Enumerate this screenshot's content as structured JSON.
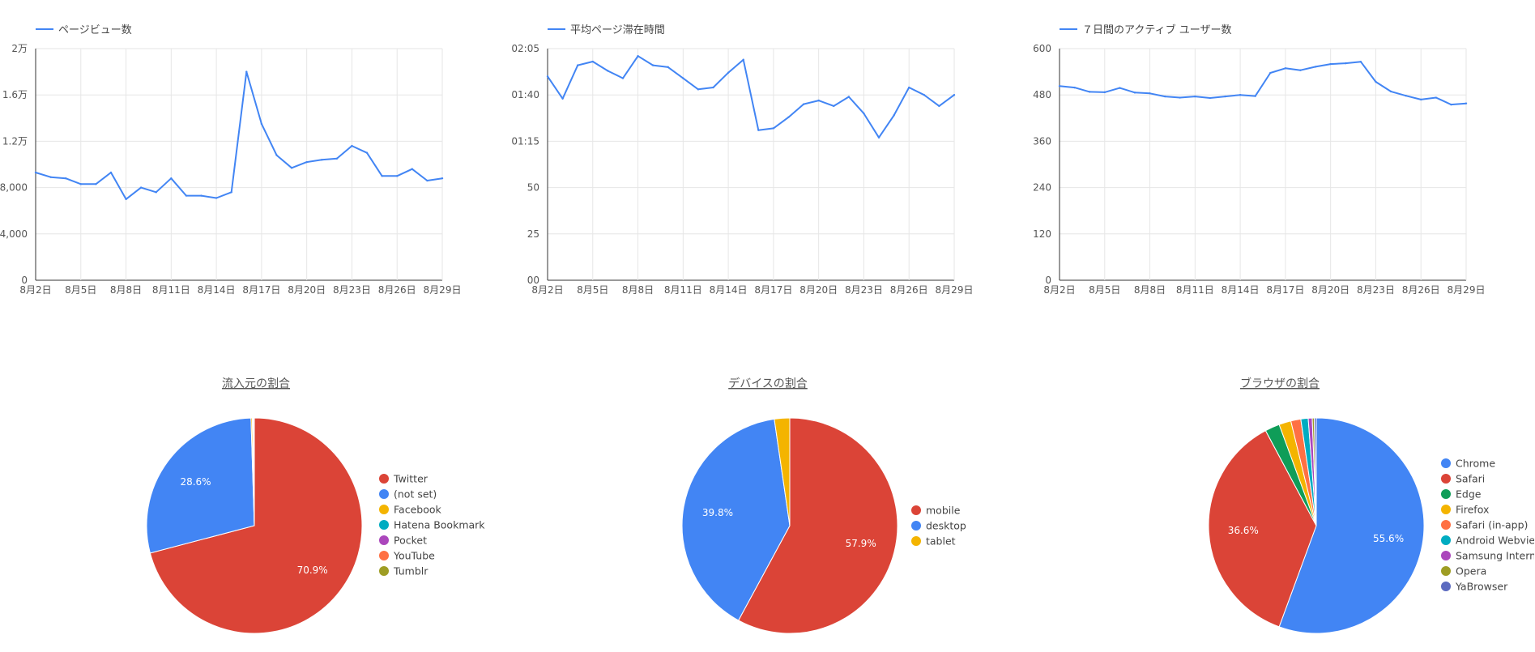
{
  "chart_data": [
    {
      "id": "pageviews",
      "type": "line",
      "title": "",
      "legend": "ページビュー数",
      "color": "#4285f4",
      "ylim": [
        0,
        20000
      ],
      "yticks": [
        "0",
        "4,000",
        "8,000",
        "1.2万",
        "1.6万",
        "2万"
      ],
      "xticks": [
        "8月2日",
        "8月5日",
        "8月8日",
        "8月11日",
        "8月14日",
        "8月17日",
        "8月20日",
        "8月23日",
        "8月26日",
        "8月29日"
      ],
      "x": [
        "8/2",
        "8/3",
        "8/4",
        "8/5",
        "8/6",
        "8/7",
        "8/8",
        "8/9",
        "8/10",
        "8/11",
        "8/12",
        "8/13",
        "8/14",
        "8/15",
        "8/16",
        "8/17",
        "8/18",
        "8/19",
        "8/20",
        "8/21",
        "8/22",
        "8/23",
        "8/24",
        "8/25",
        "8/26",
        "8/27",
        "8/28",
        "8/29"
      ],
      "values": [
        9300,
        8900,
        8800,
        8300,
        8300,
        9300,
        7000,
        8000,
        7600,
        8800,
        7300,
        7300,
        7100,
        7600,
        18000,
        13500,
        10800,
        9700,
        10200,
        10400,
        10500,
        11600,
        11000,
        9000,
        9000,
        9600,
        8600,
        8800
      ]
    },
    {
      "id": "avgtime",
      "type": "line",
      "title": "",
      "legend": "平均ページ滞在時間",
      "color": "#4285f4",
      "unit": "seconds",
      "ylim": [
        0,
        125
      ],
      "yticks": [
        "00",
        "25",
        "50",
        "01:15",
        "01:40",
        "02:05"
      ],
      "xticks": [
        "8月2日",
        "8月5日",
        "8月8日",
        "8月11日",
        "8月14日",
        "8月17日",
        "8月20日",
        "8月23日",
        "8月26日",
        "8月29日"
      ],
      "x": [
        "8/2",
        "8/3",
        "8/4",
        "8/5",
        "8/6",
        "8/7",
        "8/8",
        "8/9",
        "8/10",
        "8/11",
        "8/12",
        "8/13",
        "8/14",
        "8/15",
        "8/16",
        "8/17",
        "8/18",
        "8/19",
        "8/20",
        "8/21",
        "8/22",
        "8/23",
        "8/24",
        "8/25",
        "8/26",
        "8/27",
        "8/28",
        "8/29"
      ],
      "values": [
        110,
        98,
        116,
        118,
        113,
        109,
        121,
        116,
        115,
        109,
        103,
        104,
        112,
        119,
        81,
        82,
        88,
        95,
        97,
        94,
        99,
        90,
        77,
        89,
        104,
        100,
        94,
        100
      ]
    },
    {
      "id": "active7",
      "type": "line",
      "title": "",
      "legend": "７日間のアクティブ ユーザー数",
      "color": "#4285f4",
      "ylim": [
        0,
        600
      ],
      "yticks": [
        "0",
        "120",
        "240",
        "360",
        "480",
        "600"
      ],
      "xticks": [
        "8月2日",
        "8月5日",
        "8月8日",
        "8月11日",
        "8月14日",
        "8月17日",
        "8月20日",
        "8月23日",
        "8月26日",
        "8月29日"
      ],
      "x": [
        "8/2",
        "8/3",
        "8/4",
        "8/5",
        "8/6",
        "8/7",
        "8/8",
        "8/9",
        "8/10",
        "8/11",
        "8/12",
        "8/13",
        "8/14",
        "8/15",
        "8/16",
        "8/17",
        "8/18",
        "8/19",
        "8/20",
        "8/21",
        "8/22",
        "8/23",
        "8/24",
        "8/25",
        "8/26",
        "8/27",
        "8/28",
        "8/29"
      ],
      "values": [
        503,
        499,
        488,
        487,
        498,
        486,
        484,
        476,
        473,
        476,
        472,
        476,
        480,
        477,
        537,
        549,
        544,
        553,
        560,
        562,
        566,
        514,
        489,
        478,
        468,
        473,
        455,
        458
      ]
    },
    {
      "id": "source",
      "type": "pie",
      "title": "流入元の割合",
      "slices": [
        {
          "label": "Twitter",
          "value": 70.9,
          "color": "#db4437",
          "text": "70.9%"
        },
        {
          "label": "(not set)",
          "value": 28.6,
          "color": "#4285f4",
          "text": "28.6%"
        },
        {
          "label": "Facebook",
          "value": 0.2,
          "color": "#f4b400",
          "text": ""
        },
        {
          "label": "Hatena Bookmark",
          "value": 0.1,
          "color": "#00acc1",
          "text": ""
        },
        {
          "label": "Pocket",
          "value": 0.1,
          "color": "#ab47bc",
          "text": ""
        },
        {
          "label": "YouTube",
          "value": 0.05,
          "color": "#ff7043",
          "text": ""
        },
        {
          "label": "Tumblr",
          "value": 0.05,
          "color": "#9e9d24",
          "text": ""
        }
      ]
    },
    {
      "id": "device",
      "type": "pie",
      "title": "デバイスの割合",
      "slices": [
        {
          "label": "mobile",
          "value": 57.9,
          "color": "#db4437",
          "text": "57.9%"
        },
        {
          "label": "desktop",
          "value": 39.8,
          "color": "#4285f4",
          "text": "39.8%"
        },
        {
          "label": "tablet",
          "value": 2.3,
          "color": "#f4b400",
          "text": ""
        }
      ]
    },
    {
      "id": "browser",
      "type": "pie",
      "title": "ブラウザの割合",
      "slices": [
        {
          "label": "Chrome",
          "value": 55.6,
          "color": "#4285f4",
          "text": "55.6%"
        },
        {
          "label": "Safari",
          "value": 36.6,
          "color": "#db4437",
          "text": "36.6%"
        },
        {
          "label": "Edge",
          "value": 2.2,
          "color": "#0f9d58",
          "text": ""
        },
        {
          "label": "Firefox",
          "value": 1.8,
          "color": "#f4b400",
          "text": ""
        },
        {
          "label": "Safari (in-app)",
          "value": 1.5,
          "color": "#ff7043",
          "text": ""
        },
        {
          "label": "Android Webview",
          "value": 1.1,
          "color": "#00acc1",
          "text": ""
        },
        {
          "label": "Samsung Internet",
          "value": 0.6,
          "color": "#ab47bc",
          "text": ""
        },
        {
          "label": "Opera",
          "value": 0.3,
          "color": "#9e9d24",
          "text": ""
        },
        {
          "label": "YaBrowser",
          "value": 0.3,
          "color": "#5c6bc0",
          "text": ""
        }
      ]
    }
  ]
}
